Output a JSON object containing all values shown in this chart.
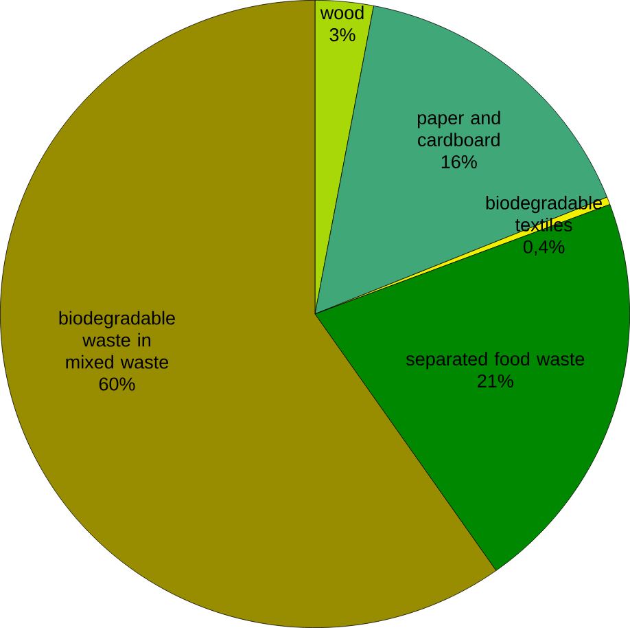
{
  "chart_data": {
    "type": "pie",
    "categories": [
      "wood",
      "paper and cardboard",
      "biodegradable textiles",
      "separated food waste",
      "biodegradable waste in mixed waste"
    ],
    "values": [
      3,
      16,
      0.4,
      21,
      60
    ],
    "value_labels": [
      "3%",
      "16%",
      "0,4%",
      "21%",
      "60%"
    ],
    "colors": [
      "#a8d808",
      "#40a878",
      "#f0f000",
      "#008800",
      "#988c00"
    ]
  }
}
